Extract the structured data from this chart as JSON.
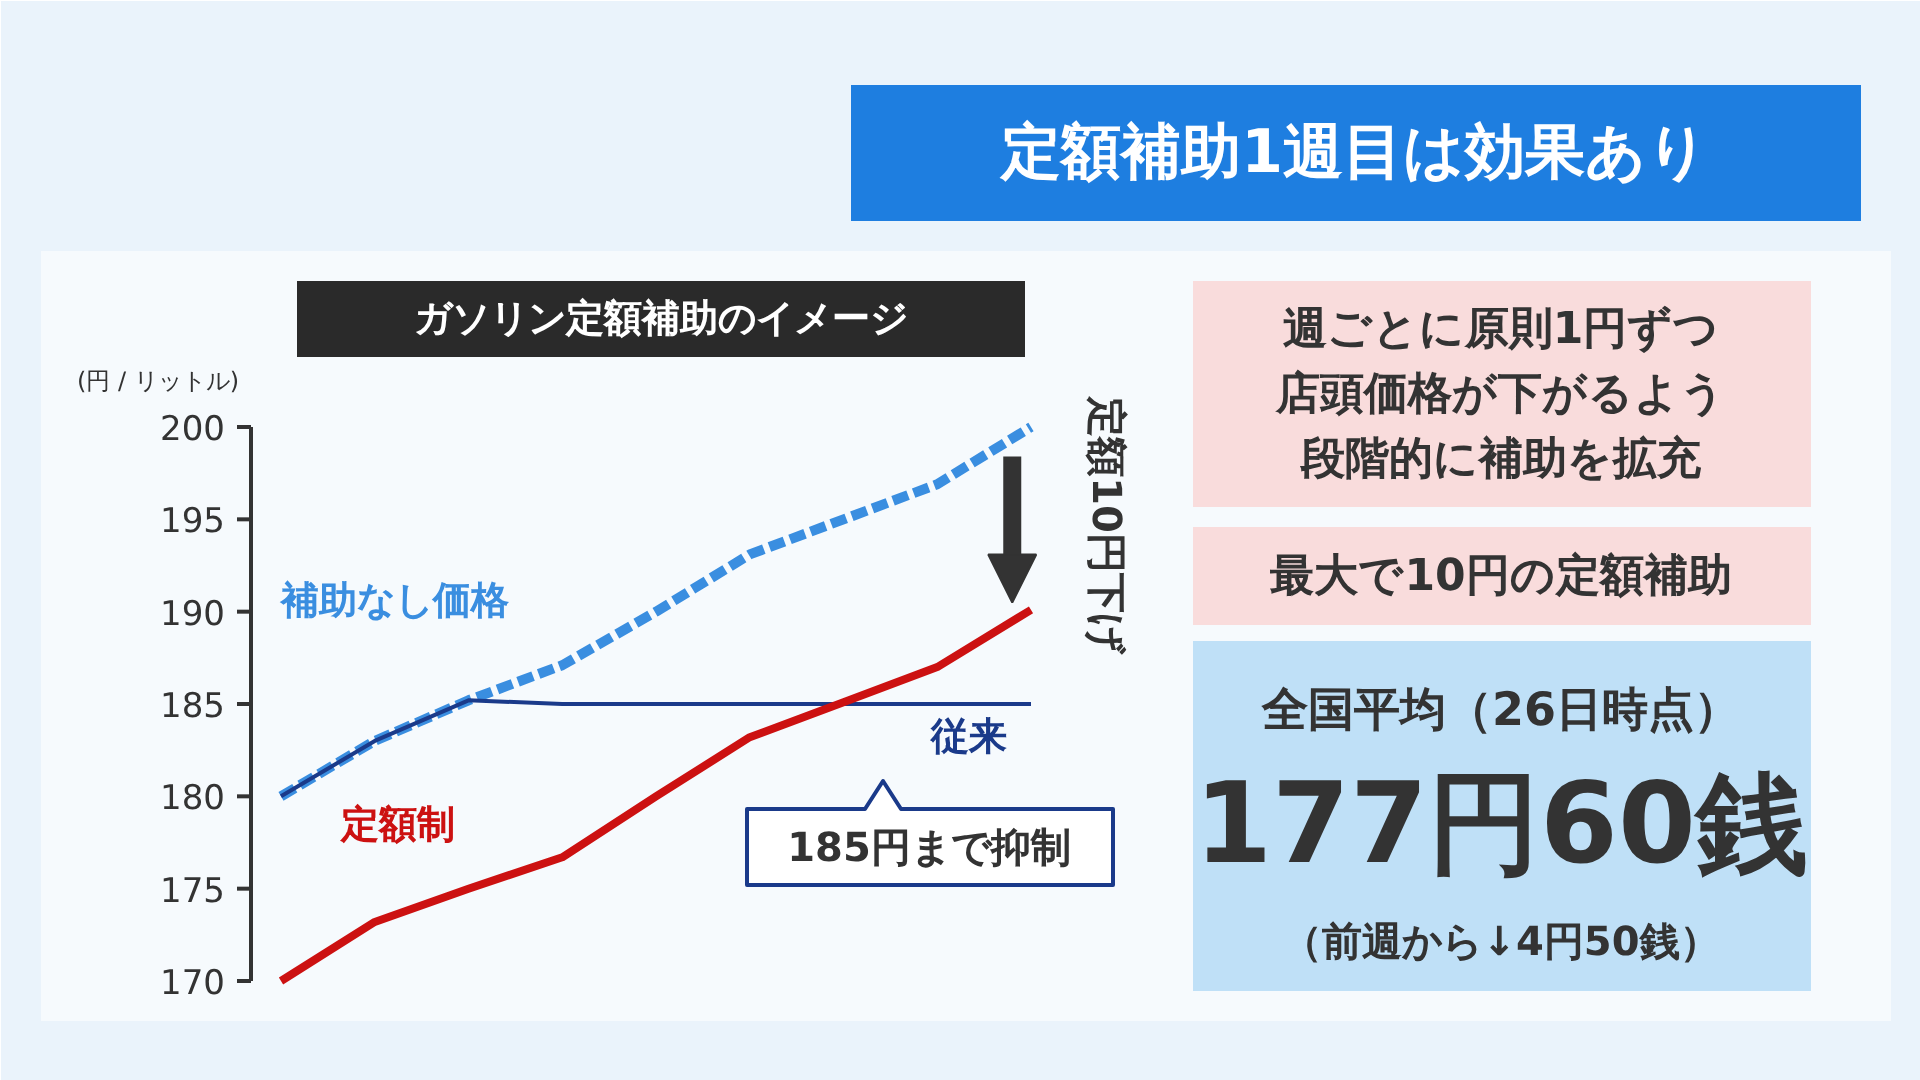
{
  "chart_data": {
    "type": "line",
    "title": "定額補助1週目は効果あり",
    "subtitle": "ガソリン定額補助のイメージ",
    "ylabel": "(円 / リットル)",
    "categories": [
      null,
      null,
      null,
      null,
      null,
      null,
      null,
      null,
      null
    ],
    "series": [
      {
        "name": "補助なし価格",
        "color": "#3a8ee0",
        "line_style": "dashed",
        "values": [
          180,
          183,
          185.2,
          187.1,
          190,
          193.1,
          195,
          196.9,
          200
        ]
      },
      {
        "name": "従来",
        "color": "#1a3a8a",
        "values": [
          180,
          183,
          185.2,
          185,
          185,
          185,
          185,
          185,
          185
        ]
      },
      {
        "name": "定額制",
        "color": "#cc1111",
        "values": [
          170,
          173.2,
          175,
          176.7,
          180,
          183.2,
          185.1,
          187,
          190.1
        ]
      }
    ],
    "ylim": [
      170,
      200
    ],
    "yticks": [
      170,
      175,
      180,
      185,
      190,
      195,
      200
    ],
    "tick_labels": "y",
    "grid": false,
    "annotations": [
      "週ごとに原則1円ずつ店頭価格が下がるよう段階的に補助を拡充",
      "最大で10円の定額補助",
      "全国平均（26日時点）",
      "177円60銭",
      "（前週から↓4円50銭）",
      "定額10円下げ",
      "185円まで抑制"
    ]
  }
}
